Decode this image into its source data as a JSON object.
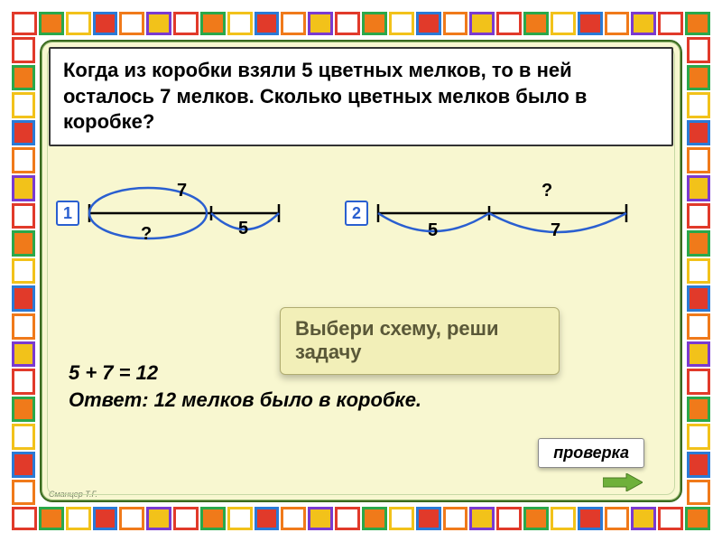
{
  "border_colors": [
    "#e13a2a",
    "#2aa84a",
    "#f2c21a",
    "#2a7ad6",
    "#f07a1a",
    "#7a3ad0"
  ],
  "problem_text": "Когда из коробки взяли 5 цветных мелков, то в ней\n осталось 7 мелков. Сколько цветных мелков было\nв коробке?",
  "diagram1": {
    "badge": "1",
    "top_label": "7",
    "left_label": "?",
    "right_label": "5",
    "arc_color": "#2a5fd0",
    "type": "whole-above-parts"
  },
  "diagram2": {
    "badge": "2",
    "top_label": "?",
    "left_label": "5",
    "right_label": "7",
    "arc_color": "#2a5fd0",
    "type": "parts-below-whole"
  },
  "instruction": "Выбери схему, реши задачу",
  "equation": "5 + 7 = 12",
  "answer_label": "Ответ:",
  "answer_text": "12 мелков было в коробке.",
  "check_label": "проверка",
  "arrow_color": "#6fb03a",
  "credit": "Сманцер Т.Г."
}
